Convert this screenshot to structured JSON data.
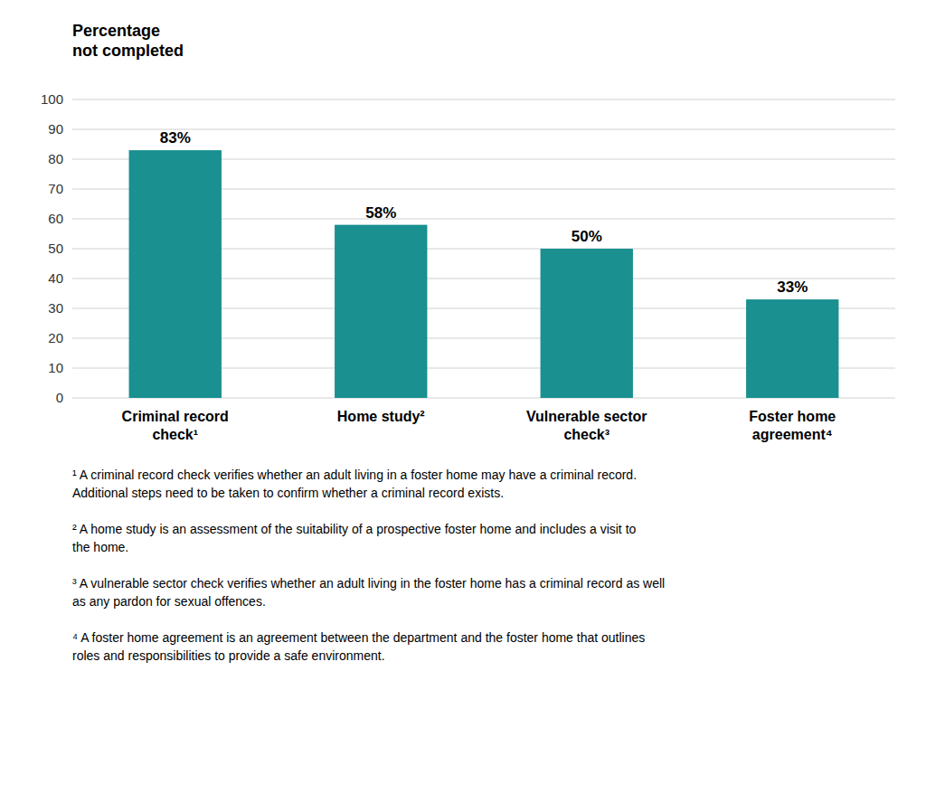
{
  "chart_data": {
    "type": "bar",
    "y_label": "Percentage\nnot completed",
    "categories": [
      "Criminal record\ncheck¹",
      "Home study²",
      "Vulnerable sector\ncheck³",
      "Foster home\nagreement⁴"
    ],
    "values": [
      83,
      58,
      50,
      33
    ],
    "value_labels": [
      "83%",
      "58%",
      "50%",
      "33%"
    ],
    "data_labels": true,
    "color": "#1a9090",
    "ylim": [
      0,
      100
    ],
    "yticks": [
      0,
      10,
      20,
      30,
      40,
      50,
      60,
      70,
      80,
      90,
      100
    ],
    "grid": true,
    "footnotes": [
      "¹ A criminal record check verifies whether an adult living in a foster home may have a criminal record.\nAdditional steps need to be taken to confirm whether a criminal record exists.",
      "² A home study is an assessment of the suitability of a prospective foster home and includes a visit to\nthe home.",
      "³ A vulnerable sector check verifies whether an adult living in the foster home has a criminal record as well\nas any pardon for sexual offences.",
      "⁴ A foster home agreement is an agreement between the department and the foster home that outlines\nroles and responsibilities to provide a safe environment."
    ]
  }
}
